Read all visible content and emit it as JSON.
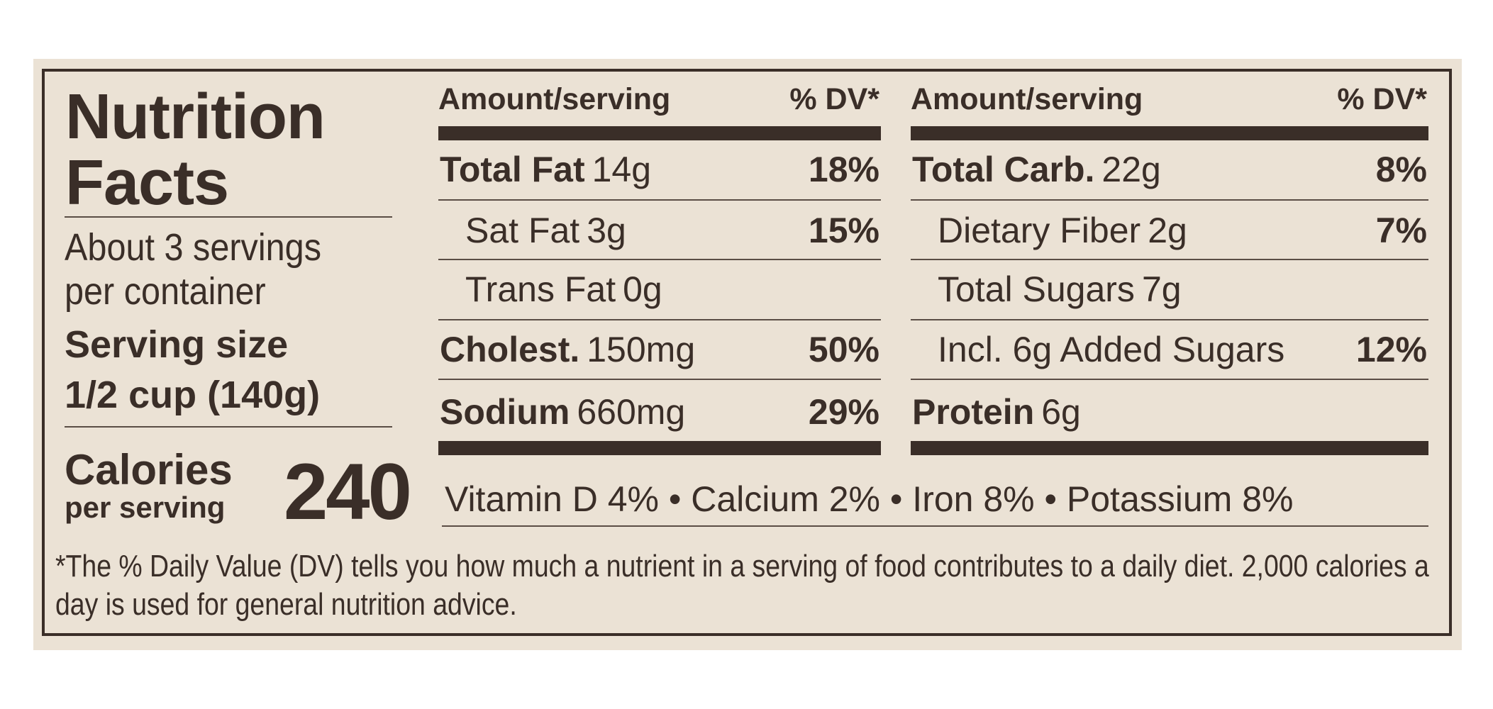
{
  "label": {
    "title_lines": [
      "Nutrition",
      "Facts"
    ],
    "servings": "About 3 servings per container",
    "serving_size_label": "Serving size",
    "serving_size": "1/2 cup (140g)",
    "calories_label": "Calories",
    "calories_sub": "per serving",
    "calories": "240",
    "left_header": {
      "amount": "Amount/serving",
      "dv": "% DV*"
    },
    "left_rows": [
      {
        "name": "Total Fat",
        "amount": "14g",
        "dv": "18%",
        "bold": true,
        "indent": false
      },
      {
        "name": "Sat Fat",
        "amount": "3g",
        "dv": "15%",
        "bold": false,
        "indent": true
      },
      {
        "name": "Trans Fat",
        "amount": "0g",
        "dv": null,
        "bold": false,
        "indent": true
      },
      {
        "name": "Cholest.",
        "amount": "150mg",
        "dv": "50%",
        "bold": true,
        "indent": false
      },
      {
        "name": "Sodium",
        "amount": "660mg",
        "dv": "29%",
        "bold": true,
        "indent": false
      }
    ],
    "right_header": {
      "amount": "Amount/serving",
      "dv": "% DV*"
    },
    "right_rows": [
      {
        "name": "Total Carb.",
        "amount": "22g",
        "dv": "8%",
        "bold": true,
        "indent": false
      },
      {
        "name": "Dietary Fiber",
        "amount": "2g",
        "dv": "7%",
        "bold": false,
        "indent": true
      },
      {
        "name": "Total Sugars",
        "amount": "7g",
        "dv": null,
        "bold": false,
        "indent": true
      },
      {
        "name": "Incl. 6g Added Sugars",
        "amount": null,
        "dv": "12%",
        "bold": false,
        "indent": true
      },
      {
        "name": "Protein",
        "amount": "6g",
        "dv": null,
        "bold": true,
        "indent": false
      }
    ],
    "vitamins": "Vitamin D 4% • Calcium 2% • Iron 8% • Potassium 8%",
    "footnote": "*The % Daily Value (DV) tells you how much a nutrient in a serving of food contributes to a daily diet. 2,000 calories a day is used for general nutrition advice."
  }
}
